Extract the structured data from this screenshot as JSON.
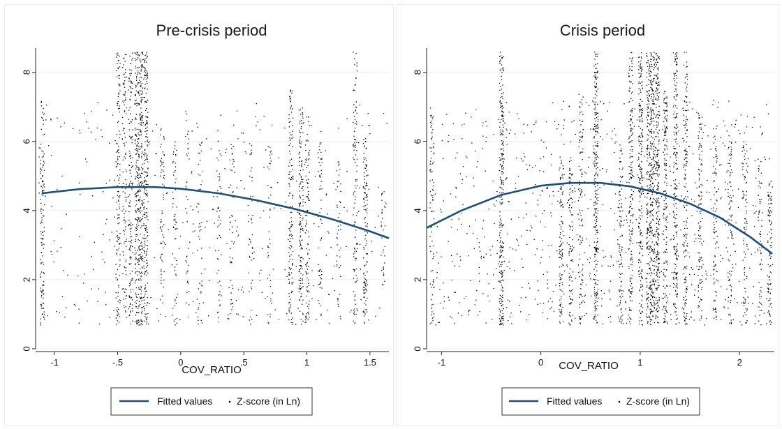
{
  "colors": {
    "fitted_line": "#1f4e79",
    "scatter": "#000000",
    "grid": "#e8eef0",
    "axis": "#222222"
  },
  "chart_data": [
    {
      "type": "scatter",
      "title": "Pre-crisis period",
      "xlabel": "COV_RATIO",
      "ylabel": "",
      "xlim": [
        -1.15,
        1.65
      ],
      "ylim": [
        0,
        8.7
      ],
      "x_ticks": [
        -1,
        -0.5,
        0,
        0.5,
        1,
        1.5
      ],
      "x_tick_labels": [
        "-1",
        "-.5",
        "0",
        ".5",
        "1",
        "1.5"
      ],
      "y_ticks": [
        0,
        2,
        4,
        6,
        8
      ],
      "y_tick_labels": [
        "0",
        "2",
        "4",
        "6",
        "8"
      ],
      "grid": true,
      "legend_position": "bottom",
      "series": [
        {
          "name": "Fitted values",
          "type": "line",
          "x": [
            -1.1,
            -0.8,
            -0.5,
            -0.2,
            0,
            0.3,
            0.6,
            0.9,
            1.2,
            1.5,
            1.65
          ],
          "y": [
            4.5,
            4.62,
            4.68,
            4.68,
            4.63,
            4.5,
            4.3,
            4.05,
            3.75,
            3.4,
            3.2
          ]
        },
        {
          "name": "Z-score (in Ln)",
          "type": "scatter",
          "clusters": [
            {
              "x": -1.1,
              "n": 130,
              "ymin": 0.7,
              "ymax": 7.2
            },
            {
              "x": -0.5,
              "n": 130,
              "ymin": 0.7,
              "ymax": 8.6
            },
            {
              "x": -0.45,
              "n": 110,
              "ymin": 0.7,
              "ymax": 8.6
            },
            {
              "x": -0.4,
              "n": 150,
              "ymin": 0.7,
              "ymax": 8.6
            },
            {
              "x": -0.35,
              "n": 200,
              "ymin": 0.7,
              "ymax": 8.6
            },
            {
              "x": -0.32,
              "n": 220,
              "ymin": 0.7,
              "ymax": 8.6
            },
            {
              "x": -0.28,
              "n": 220,
              "ymin": 0.7,
              "ymax": 8.6
            },
            {
              "x": -0.15,
              "n": 70,
              "ymin": 0.7,
              "ymax": 6.5
            },
            {
              "x": -0.05,
              "n": 50,
              "ymin": 0.7,
              "ymax": 6.0
            },
            {
              "x": 0.05,
              "n": 40,
              "ymin": 0.7,
              "ymax": 7.0
            },
            {
              "x": 0.15,
              "n": 40,
              "ymin": 0.7,
              "ymax": 6.0
            },
            {
              "x": 0.3,
              "n": 50,
              "ymin": 0.7,
              "ymax": 6.2
            },
            {
              "x": 0.4,
              "n": 40,
              "ymin": 0.7,
              "ymax": 6.0
            },
            {
              "x": 0.55,
              "n": 40,
              "ymin": 0.7,
              "ymax": 6.0
            },
            {
              "x": 0.7,
              "n": 40,
              "ymin": 0.7,
              "ymax": 6.0
            },
            {
              "x": 0.87,
              "n": 140,
              "ymin": 0.7,
              "ymax": 7.5
            },
            {
              "x": 0.95,
              "n": 150,
              "ymin": 0.7,
              "ymax": 7.0
            },
            {
              "x": 1.0,
              "n": 100,
              "ymin": 0.7,
              "ymax": 6.8
            },
            {
              "x": 1.1,
              "n": 60,
              "ymin": 0.7,
              "ymax": 6.0
            },
            {
              "x": 1.25,
              "n": 40,
              "ymin": 0.7,
              "ymax": 5.5
            },
            {
              "x": 1.38,
              "n": 110,
              "ymin": 0.7,
              "ymax": 8.6
            },
            {
              "x": 1.46,
              "n": 130,
              "ymin": 0.7,
              "ymax": 6.2
            },
            {
              "x": 1.6,
              "n": 30,
              "ymin": 1.8,
              "ymax": 4.5
            }
          ],
          "scattered_points": 400
        }
      ]
    },
    {
      "type": "scatter",
      "title": "Crisis period",
      "xlabel": "COV_RATIO",
      "ylabel": "",
      "xlim": [
        -1.15,
        2.35
      ],
      "ylim": [
        0,
        8.7
      ],
      "x_ticks": [
        -1,
        0,
        1,
        2
      ],
      "x_tick_labels": [
        "-1",
        "0",
        "1",
        "2"
      ],
      "y_ticks": [
        0,
        2,
        4,
        6,
        8
      ],
      "y_tick_labels": [
        "0",
        "2",
        "4",
        "6",
        "8"
      ],
      "grid": true,
      "legend_position": "bottom",
      "series": [
        {
          "name": "Fitted values",
          "type": "line",
          "x": [
            -1.15,
            -0.8,
            -0.4,
            0,
            0.3,
            0.6,
            0.9,
            1.2,
            1.5,
            1.8,
            2.1,
            2.33
          ],
          "y": [
            3.5,
            4.0,
            4.45,
            4.72,
            4.8,
            4.8,
            4.7,
            4.5,
            4.2,
            3.8,
            3.25,
            2.75
          ]
        },
        {
          "name": "Z-score (in Ln)",
          "type": "scatter",
          "clusters": [
            {
              "x": -1.1,
              "n": 80,
              "ymin": 0.7,
              "ymax": 7.0
            },
            {
              "x": -0.4,
              "n": 250,
              "ymin": 0.7,
              "ymax": 8.6
            },
            {
              "x": 0.2,
              "n": 100,
              "ymin": 0.7,
              "ymax": 5.5
            },
            {
              "x": 0.3,
              "n": 90,
              "ymin": 0.7,
              "ymax": 5.5
            },
            {
              "x": 0.4,
              "n": 100,
              "ymin": 0.7,
              "ymax": 7.5
            },
            {
              "x": 0.55,
              "n": 250,
              "ymin": 0.7,
              "ymax": 8.6
            },
            {
              "x": 0.8,
              "n": 90,
              "ymin": 0.7,
              "ymax": 6.0
            },
            {
              "x": 0.9,
              "n": 180,
              "ymin": 0.7,
              "ymax": 8.6
            },
            {
              "x": 1.0,
              "n": 220,
              "ymin": 0.7,
              "ymax": 8.6
            },
            {
              "x": 1.08,
              "n": 220,
              "ymin": 0.7,
              "ymax": 8.6
            },
            {
              "x": 1.12,
              "n": 250,
              "ymin": 0.7,
              "ymax": 8.6
            },
            {
              "x": 1.17,
              "n": 250,
              "ymin": 0.7,
              "ymax": 8.6
            },
            {
              "x": 1.25,
              "n": 160,
              "ymin": 0.7,
              "ymax": 7.5
            },
            {
              "x": 1.35,
              "n": 200,
              "ymin": 0.7,
              "ymax": 8.6
            },
            {
              "x": 1.45,
              "n": 150,
              "ymin": 0.7,
              "ymax": 8.6
            },
            {
              "x": 1.6,
              "n": 100,
              "ymin": 0.7,
              "ymax": 7.0
            },
            {
              "x": 1.75,
              "n": 80,
              "ymin": 0.7,
              "ymax": 6.5
            },
            {
              "x": 1.9,
              "n": 80,
              "ymin": 0.7,
              "ymax": 6.2
            },
            {
              "x": 2.05,
              "n": 70,
              "ymin": 0.7,
              "ymax": 6.0
            },
            {
              "x": 2.2,
              "n": 60,
              "ymin": 0.7,
              "ymax": 5.5
            },
            {
              "x": 2.3,
              "n": 90,
              "ymin": 0.7,
              "ymax": 5.2
            }
          ],
          "scattered_points": 900
        }
      ]
    }
  ]
}
